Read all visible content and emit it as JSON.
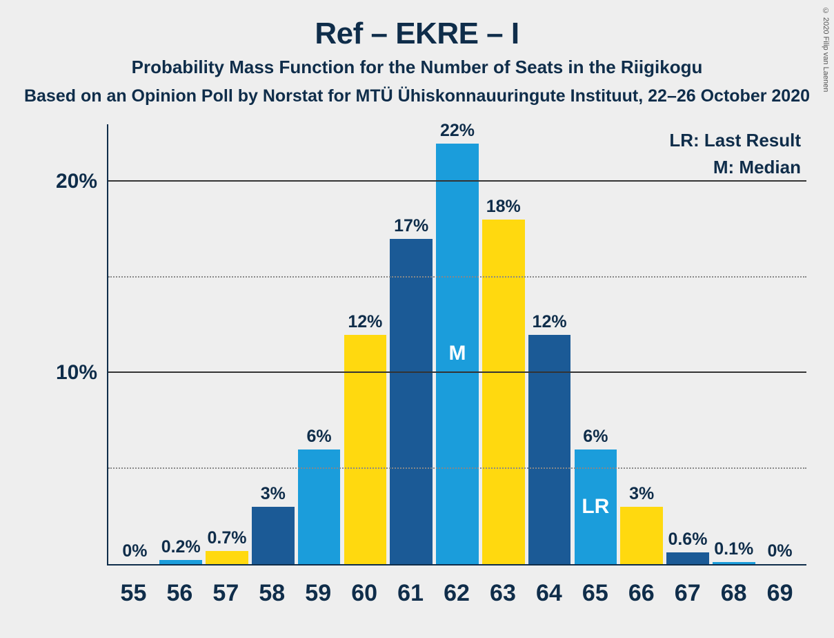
{
  "title": "Ref – EKRE – I",
  "subtitle": "Probability Mass Function for the Number of Seats in the Riigikogu",
  "subsubtitle": "Based on an Opinion Poll by Norstat for MTÜ Ühiskonnauuringute Instituut, 22–26 October 2020",
  "copyright": "© 2020 Filip van Laenen",
  "chart": {
    "type": "bar",
    "background_color": "#eeeeee",
    "axis_color": "#0f2d4a",
    "grid_solid_color": "#333333",
    "grid_dotted_color": "#888888",
    "text_color": "#0f2d4a",
    "ylim_max": 23,
    "y_major_ticks": [
      10,
      20
    ],
    "y_minor_ticks": [
      5,
      15
    ],
    "ytick_labels": {
      "10": "10%",
      "20": "20%"
    },
    "legend": {
      "lr": "LR: Last Result",
      "m": "M: Median"
    },
    "colors_cycle": [
      "#1b5a96",
      "#1b9ddb",
      "#ffd90f"
    ],
    "categories": [
      "55",
      "56",
      "57",
      "58",
      "59",
      "60",
      "61",
      "62",
      "63",
      "64",
      "65",
      "66",
      "67",
      "68",
      "69"
    ],
    "values": [
      0,
      0.2,
      0.7,
      3,
      6,
      12,
      17,
      22,
      18,
      12,
      6,
      3,
      0.6,
      0.1,
      0
    ],
    "value_labels": [
      "0%",
      "0.2%",
      "0.7%",
      "3%",
      "6%",
      "12%",
      "17%",
      "22%",
      "18%",
      "12%",
      "6%",
      "3%",
      "0.6%",
      "0.1%",
      "0%"
    ],
    "bar_colors": [
      "#1b5a96",
      "#1b9ddb",
      "#ffd90f",
      "#1b5a96",
      "#1b9ddb",
      "#ffd90f",
      "#1b5a96",
      "#1b9ddb",
      "#ffd90f",
      "#1b5a96",
      "#1b9ddb",
      "#ffd90f",
      "#1b5a96",
      "#1b9ddb",
      "#ffd90f"
    ],
    "inside_labels": {
      "62": "M",
      "65": "LR"
    },
    "title_fontsize": 44,
    "subtitle_fontsize": 26,
    "subsubtitle_fontsize": 25,
    "xtick_fontsize": 34,
    "ytick_fontsize": 30,
    "value_fontsize": 25,
    "legend_fontsize": 26,
    "inside_label_fontsize": 30,
    "bar_width_pct": 95
  }
}
